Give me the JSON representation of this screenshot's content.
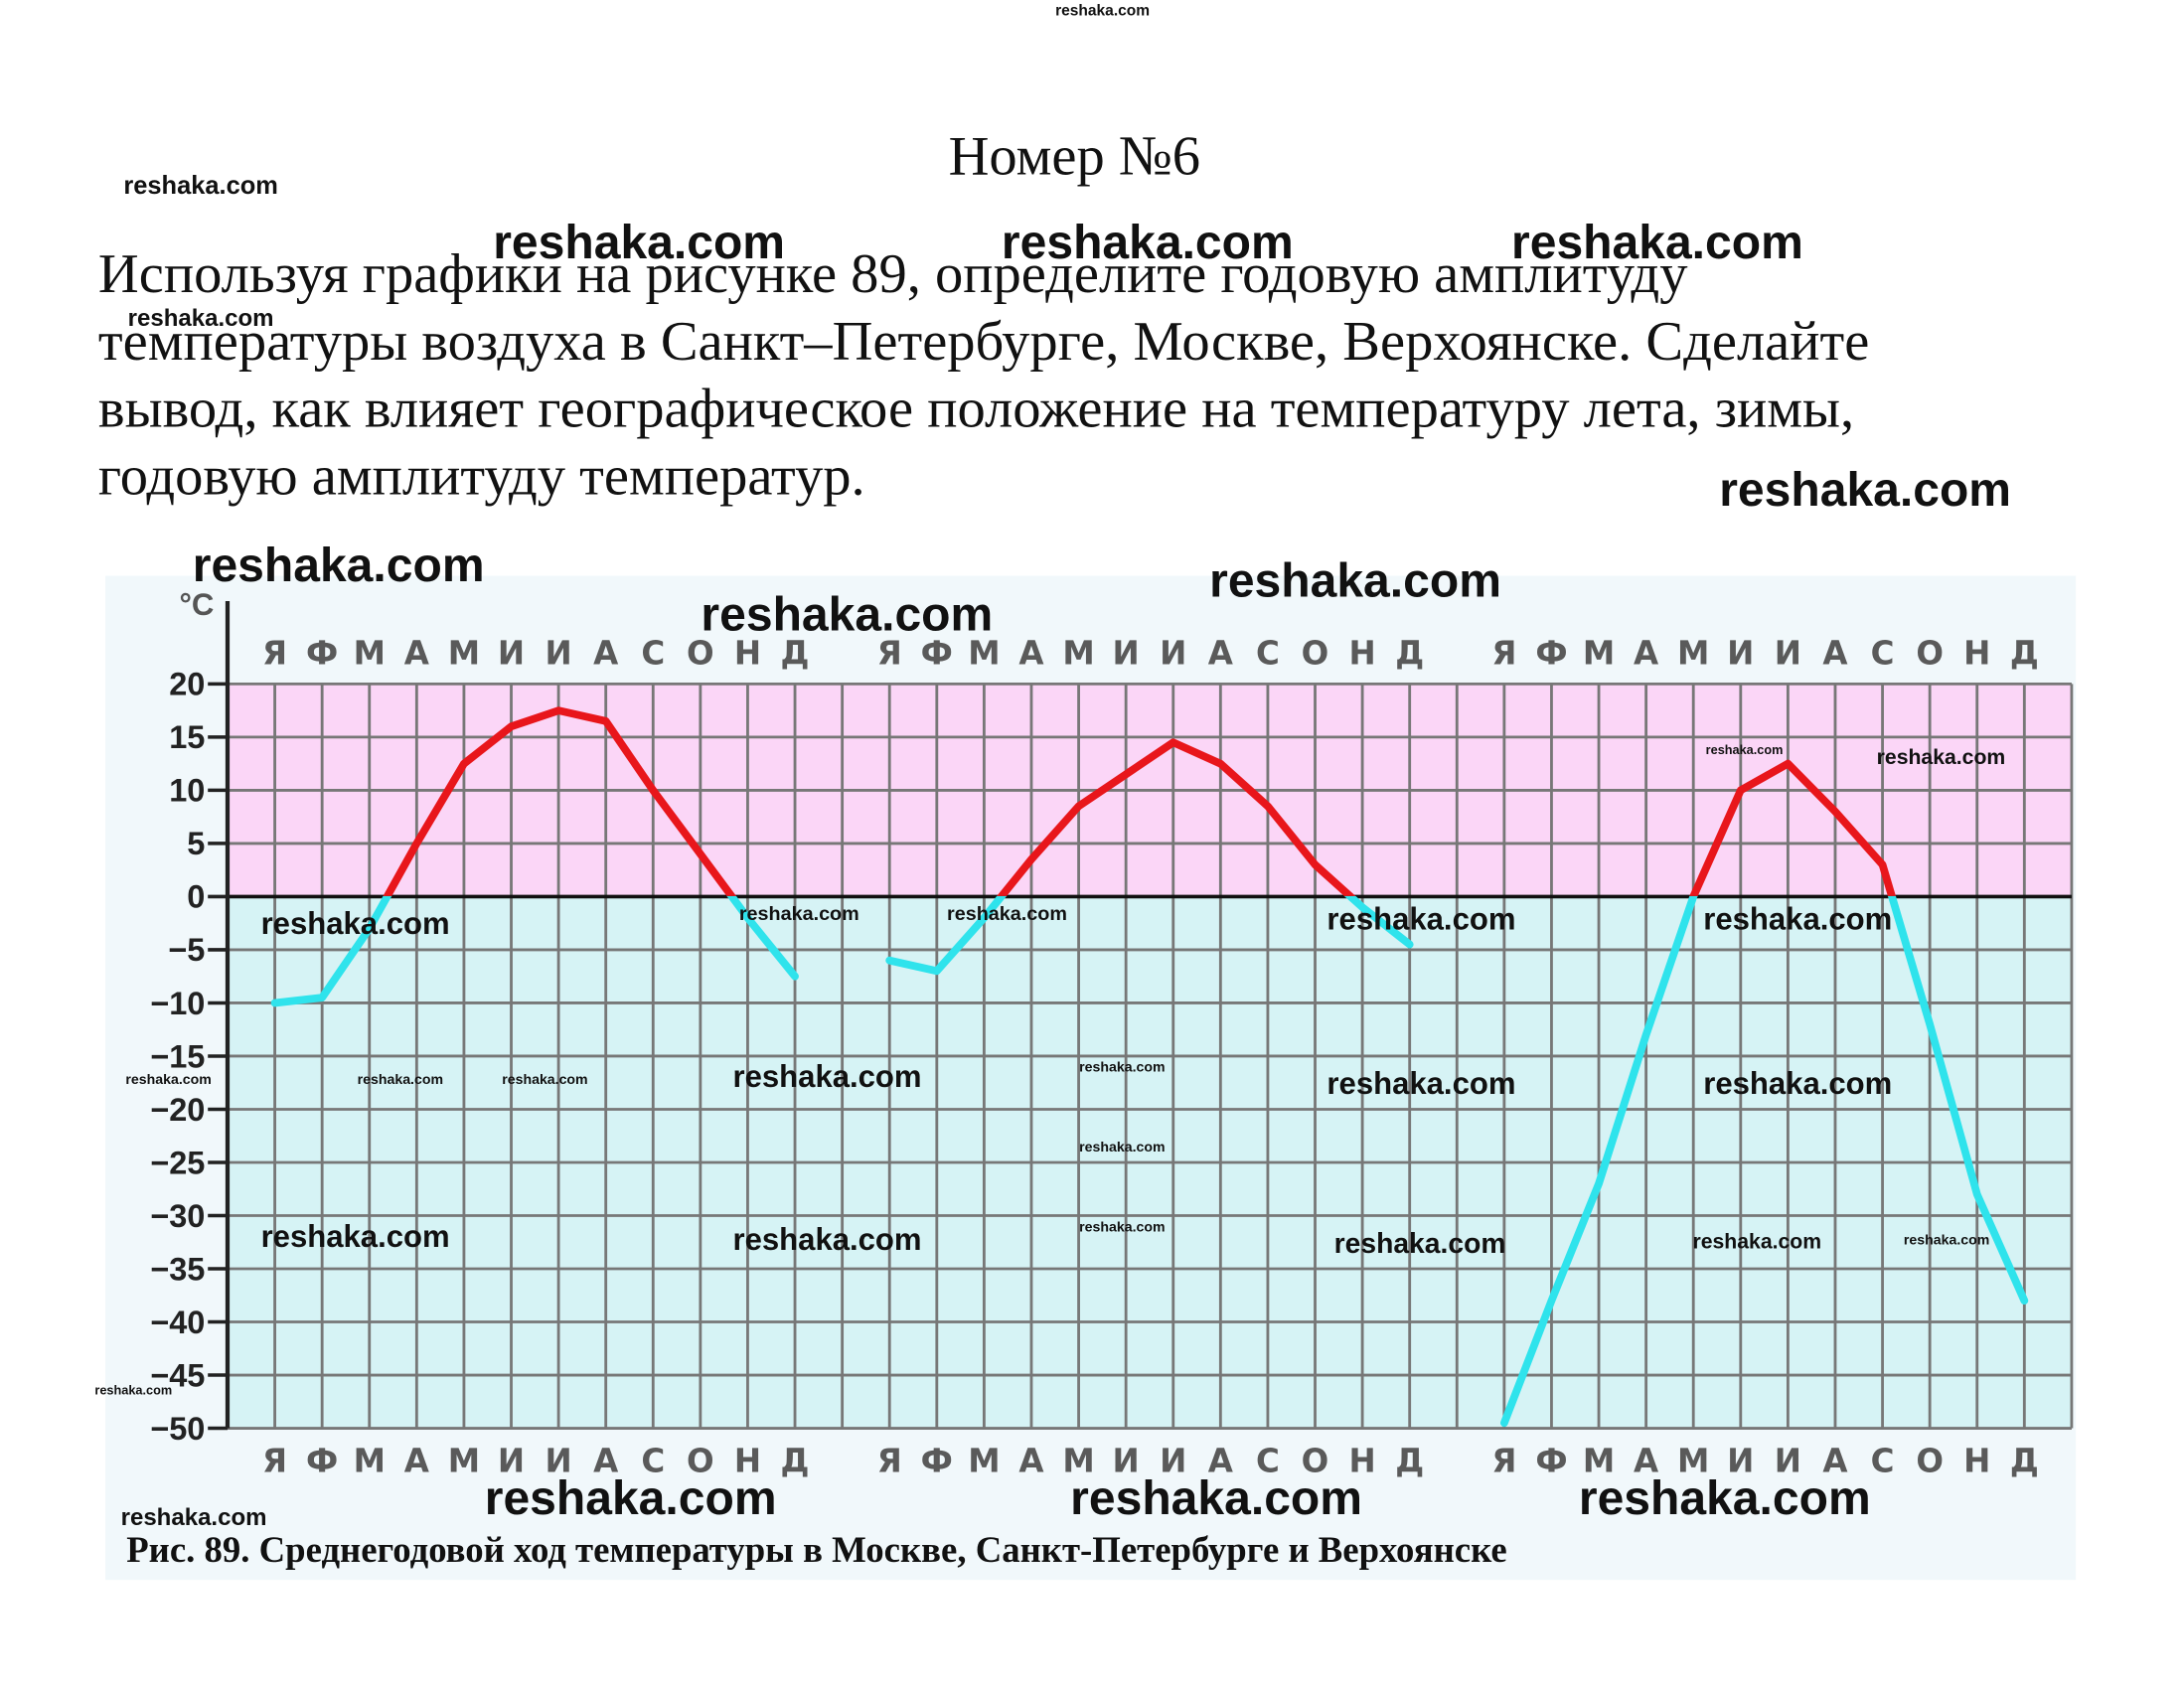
{
  "header": {
    "title": "Номер №6"
  },
  "problem": {
    "lines": [
      "Используя графики на рисунке 89, определите годовую амплитуду",
      "температуры воздуха в Санкт–Петербурге, Москве, Верхоянске. Сделайте",
      "вывод, как влияет географическое положение на температуру лета, зимы,",
      "годовую амплитуду температур."
    ]
  },
  "chart_data": {
    "type": "line",
    "y_label": "°C",
    "categories": [
      "Я",
      "Ф",
      "М",
      "А",
      "М",
      "И",
      "И",
      "А",
      "С",
      "О",
      "Н",
      "Д"
    ],
    "series": [
      {
        "values": [
          -10,
          -9.5,
          -3,
          5,
          12.5,
          16,
          17.5,
          16.5,
          10,
          4,
          -2,
          -7.5
        ]
      },
      {
        "values": [
          -6,
          -7,
          -2,
          3.5,
          8.5,
          11.5,
          14.5,
          12.5,
          8.5,
          3,
          -1,
          -4.5
        ]
      },
      {
        "values": [
          -49.5,
          -38,
          -27,
          -13,
          0,
          10,
          12.5,
          8,
          3,
          -12,
          -28,
          -38
        ]
      }
    ],
    "positive_color": "#e8161b",
    "negative_color": "#2fe3ec",
    "ylim": [
      -50,
      20
    ],
    "yticks": [
      20,
      15,
      10,
      5,
      0,
      {
        "value": -5,
        "label": "−5"
      },
      {
        "value": -10,
        "label": "−10"
      },
      {
        "value": -15,
        "label": "−15"
      },
      {
        "value": -20,
        "label": "−20"
      },
      {
        "value": -25,
        "label": "−25"
      },
      {
        "value": -30,
        "label": "−30"
      },
      {
        "value": -35,
        "label": "−35"
      },
      {
        "value": -40,
        "label": "−40"
      },
      {
        "value": -45,
        "label": "−45"
      },
      {
        "value": -50,
        "label": "−50"
      }
    ],
    "grid": true,
    "caption": "Рис. 89. Среднегодовой ход температуры в Москве, Санкт-Петербурге и Верхоянске"
  },
  "watermarks": [
    "reshaka.com",
    "reshaka.com",
    "reshaka.com",
    "reshaka.com",
    "reshaka.com",
    "reshaka.com",
    "reshaka.com",
    "reshaka.com",
    "reshaka.com",
    "reshaka.com",
    "reshaka.com",
    "reshaka.com",
    "reshaka.com",
    "reshaka.com",
    "reshaka.com",
    "reshaka.com",
    "reshaka.com",
    "reshaka.com",
    "reshaka.com",
    "reshaka.com",
    "reshaka.com",
    "reshaka.com",
    "reshaka.com",
    "reshaka.com",
    "reshaka.com",
    "reshaka.com",
    "reshaka.com",
    "reshaka.com",
    "reshaka.com",
    "reshaka.com",
    "reshaka.com",
    "reshaka.com",
    "reshaka.com",
    "reshaka.com",
    "reshaka.com",
    "reshaka.com",
    "reshaka.com",
    "reshaka.com"
  ]
}
